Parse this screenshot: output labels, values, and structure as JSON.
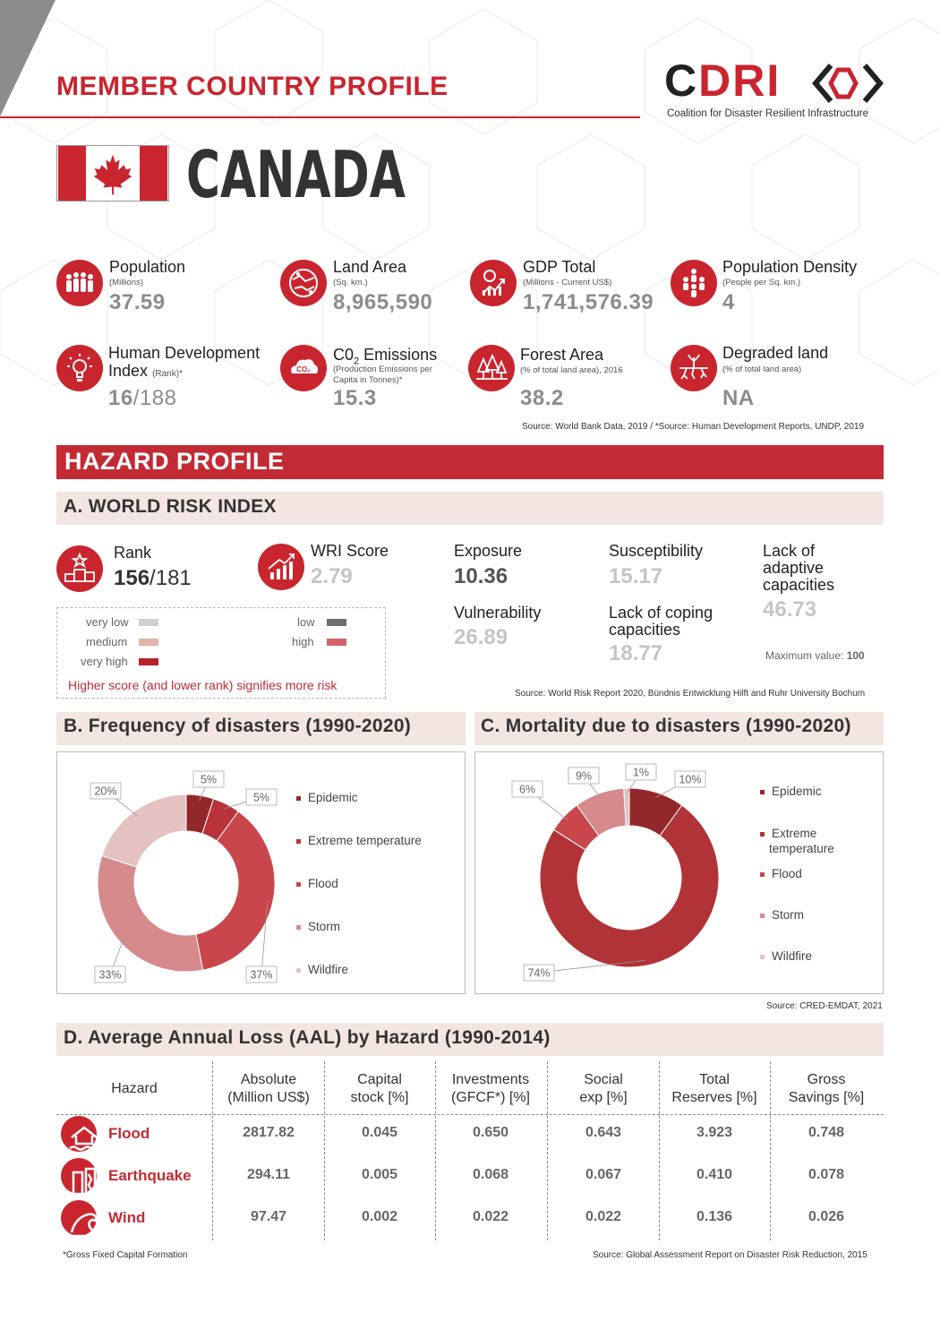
{
  "header": {
    "title": "MEMBER COUNTRY PROFILE",
    "logo_c": "C",
    "logo_dri": "DRI",
    "logo_subtitle": "Coalition for Disaster Resilient Infrastructure"
  },
  "country": {
    "name": "CANADA"
  },
  "stats": [
    {
      "label": "Population",
      "sub": "(Millions)",
      "value": "37.59",
      "icon": "people-crowd-icon"
    },
    {
      "label": "Land Area",
      "sub": "(Sq. km.)",
      "value": "8,965,590",
      "icon": "land-map-icon"
    },
    {
      "label": "GDP Total",
      "sub": "(Millions - Current US$)",
      "value": "1,741,576.39",
      "icon": "money-chart-icon"
    },
    {
      "label": "Population Density",
      "sub": "(People per Sq. km.)",
      "value": "4",
      "icon": "population-density-icon"
    },
    {
      "label": "Human Development",
      "label2": "Index",
      "sub": "(Rank)*",
      "value": "16",
      "value_suffix": "/188",
      "icon": "lightbulb-head-icon"
    },
    {
      "label": "C0",
      "label_sub": "2",
      "label_tail": " Emissions",
      "sub": "(Production Emissions per",
      "sub2": "Capita in Tonnes)*",
      "value": "15.3",
      "icon": "co2-cloud-icon"
    },
    {
      "label": "Forest Area",
      "sub": "(% of total land area), 2016",
      "value": "38.2",
      "icon": "forest-trees-icon"
    },
    {
      "label": "Degraded land",
      "sub": "(% of total land area)",
      "value": "NA",
      "icon": "degraded-land-icon"
    }
  ],
  "stats_source": "Source: World Bank Data, 2019 / *Source: Human Development Reports, UNDP, 2019",
  "hazard": {
    "title": "HAZARD PROFILE",
    "wri_title": "A. WORLD RISK INDEX",
    "rank_label": "Rank",
    "rank_value": "156",
    "rank_suffix": "/181",
    "score_label": "WRI Score",
    "score_value": "2.79",
    "exposure_label": "Exposure",
    "exposure_value": "10.36",
    "susceptibility_label": "Susceptibility",
    "susceptibility_value": "15.17",
    "lack_adaptive_label1": "Lack of",
    "lack_adaptive_label2": "adaptive",
    "lack_adaptive_label3": "capacities",
    "lack_adaptive_value": "46.73",
    "vulnerability_label": "Vulnerability",
    "vulnerability_value": "26.89",
    "lack_coping_label1": "Lack of coping",
    "lack_coping_label2": "capacities",
    "lack_coping_value": "18.77",
    "max_label": "Maximum value: ",
    "max_value": "100",
    "legend": {
      "very_low": "very low",
      "low": "low",
      "medium": "medium",
      "high": "high",
      "very_high": "very high",
      "colors": {
        "very_low": "#d0d0d0",
        "low": "#6d6e71",
        "medium": "#e3b3ad",
        "high": "#d2636a",
        "very_high": "#b8202d"
      },
      "note": "Higher score (and lower rank) signifies more risk"
    },
    "wri_source": "Source: World Risk Report 2020, Bündnis Entwicklung Hilft and Ruhr University Bochum"
  },
  "freq_title": "B.  Frequency of disasters (1990-2020)",
  "mort_title": "C.  Mortality due to disasters (1990-2020)",
  "chart_data": [
    {
      "type": "pie",
      "title": "B.  Frequency of disasters (1990-2020)",
      "categories": [
        "Epidemic",
        "Extreme temperature",
        "Flood",
        "Storm",
        "Wildfire"
      ],
      "values": [
        5,
        5,
        37,
        33,
        20
      ],
      "labels": [
        "5%",
        "5%",
        "37%",
        "33%",
        "20%"
      ],
      "colors": [
        "#93282b",
        "#b9333a",
        "#c9474c",
        "#d68a8c",
        "#e4c2c1"
      ],
      "legend_labels": [
        "Epidemic",
        "Extreme temperature",
        "Flood",
        "Storm",
        "Wildfire"
      ]
    },
    {
      "type": "pie",
      "title": "C.  Mortality due to disasters (1990-2020)",
      "categories": [
        "Epidemic",
        "Extreme temperature",
        "Flood",
        "Storm",
        "Wildfire"
      ],
      "values": [
        10,
        74,
        6,
        9,
        1
      ],
      "labels": [
        "10%",
        "74%",
        "6%",
        "9%",
        "1%"
      ],
      "colors": [
        "#93282b",
        "#b13337",
        "#c9474c",
        "#d68a8c",
        "#e4c2c1"
      ],
      "legend_labels": [
        "Epidemic",
        "Extreme",
        "Flood",
        "Storm",
        "Wildfire"
      ],
      "legend_second_line": "temperature"
    }
  ],
  "charts_source": "Source: CRED-EMDAT, 2021",
  "aal": {
    "title": "D.  Average Annual Loss (AAL) by Hazard (1990-2014)",
    "headers": [
      [
        "Hazard",
        ""
      ],
      [
        "Absolute",
        "(Million US$)"
      ],
      [
        "Capital",
        "stock [%]"
      ],
      [
        "Investments",
        "(GFCF*) [%]"
      ],
      [
        "Social",
        "exp [%]"
      ],
      [
        "Total",
        "Reserves [%]"
      ],
      [
        "Gross",
        "Savings [%]"
      ]
    ],
    "rows": [
      {
        "name": "Flood",
        "icon": "flood-house-icon",
        "cells": [
          "2817.82",
          "0.045",
          "0.650",
          "0.643",
          "3.923",
          "0.748"
        ]
      },
      {
        "name": "Earthquake",
        "icon": "earthquake-building-icon",
        "cells": [
          "294.11",
          "0.005",
          "0.068",
          "0.067",
          "0.410",
          "0.078"
        ]
      },
      {
        "name": "Wind",
        "icon": "wind-wave-icon",
        "cells": [
          "97.47",
          "0.002",
          "0.022",
          "0.022",
          "0.136",
          "0.026"
        ]
      }
    ],
    "footnote": "*Gross Fixed Capital Formation",
    "source": "Source: Global Assessment Report on Disaster Risk Reduction, 2015"
  }
}
